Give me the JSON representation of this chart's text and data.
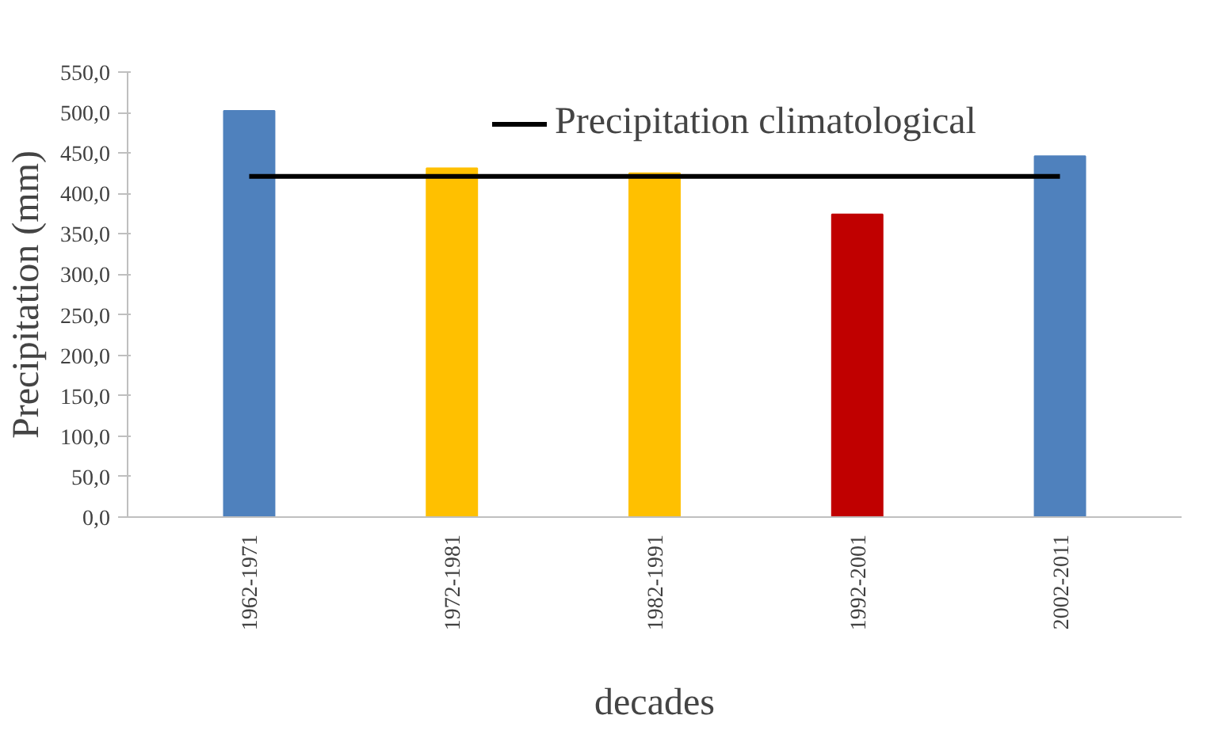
{
  "chart_data": {
    "type": "bar",
    "xlabel": "decades",
    "ylabel": "Precipitation (mm)",
    "categories": [
      "1962-1971",
      "1972-1981",
      "1982-1991",
      "1992-2001",
      "2002-2011"
    ],
    "series": [
      {
        "values": [
          502,
          431,
          425,
          374,
          446
        ],
        "colors": [
          "#4f81bd",
          "#ffc000",
          "#ffc000",
          "#c00000",
          "#4f81bd"
        ]
      },
      {
        "type": "line",
        "name": "Precipitation climatological",
        "color": "#000000",
        "values": [
          421,
          421,
          421,
          421,
          421
        ]
      }
    ],
    "ylim": [
      0,
      550
    ],
    "yticks": [
      {
        "value": 0,
        "label": "0,0"
      },
      {
        "value": 50,
        "label": "50,0"
      },
      {
        "value": 100,
        "label": "100,0"
      },
      {
        "value": 150,
        "label": "150,0"
      },
      {
        "value": 200,
        "label": "200,0"
      },
      {
        "value": 250,
        "label": "250,0"
      },
      {
        "value": 300,
        "label": "300,0"
      },
      {
        "value": 350,
        "label": "350,0"
      },
      {
        "value": 400,
        "label": "400,0"
      },
      {
        "value": 450,
        "label": "450,0"
      },
      {
        "value": 500,
        "label": "500,0"
      },
      {
        "value": 550,
        "label": "550,0"
      }
    ],
    "grid": false,
    "legend": "top"
  }
}
